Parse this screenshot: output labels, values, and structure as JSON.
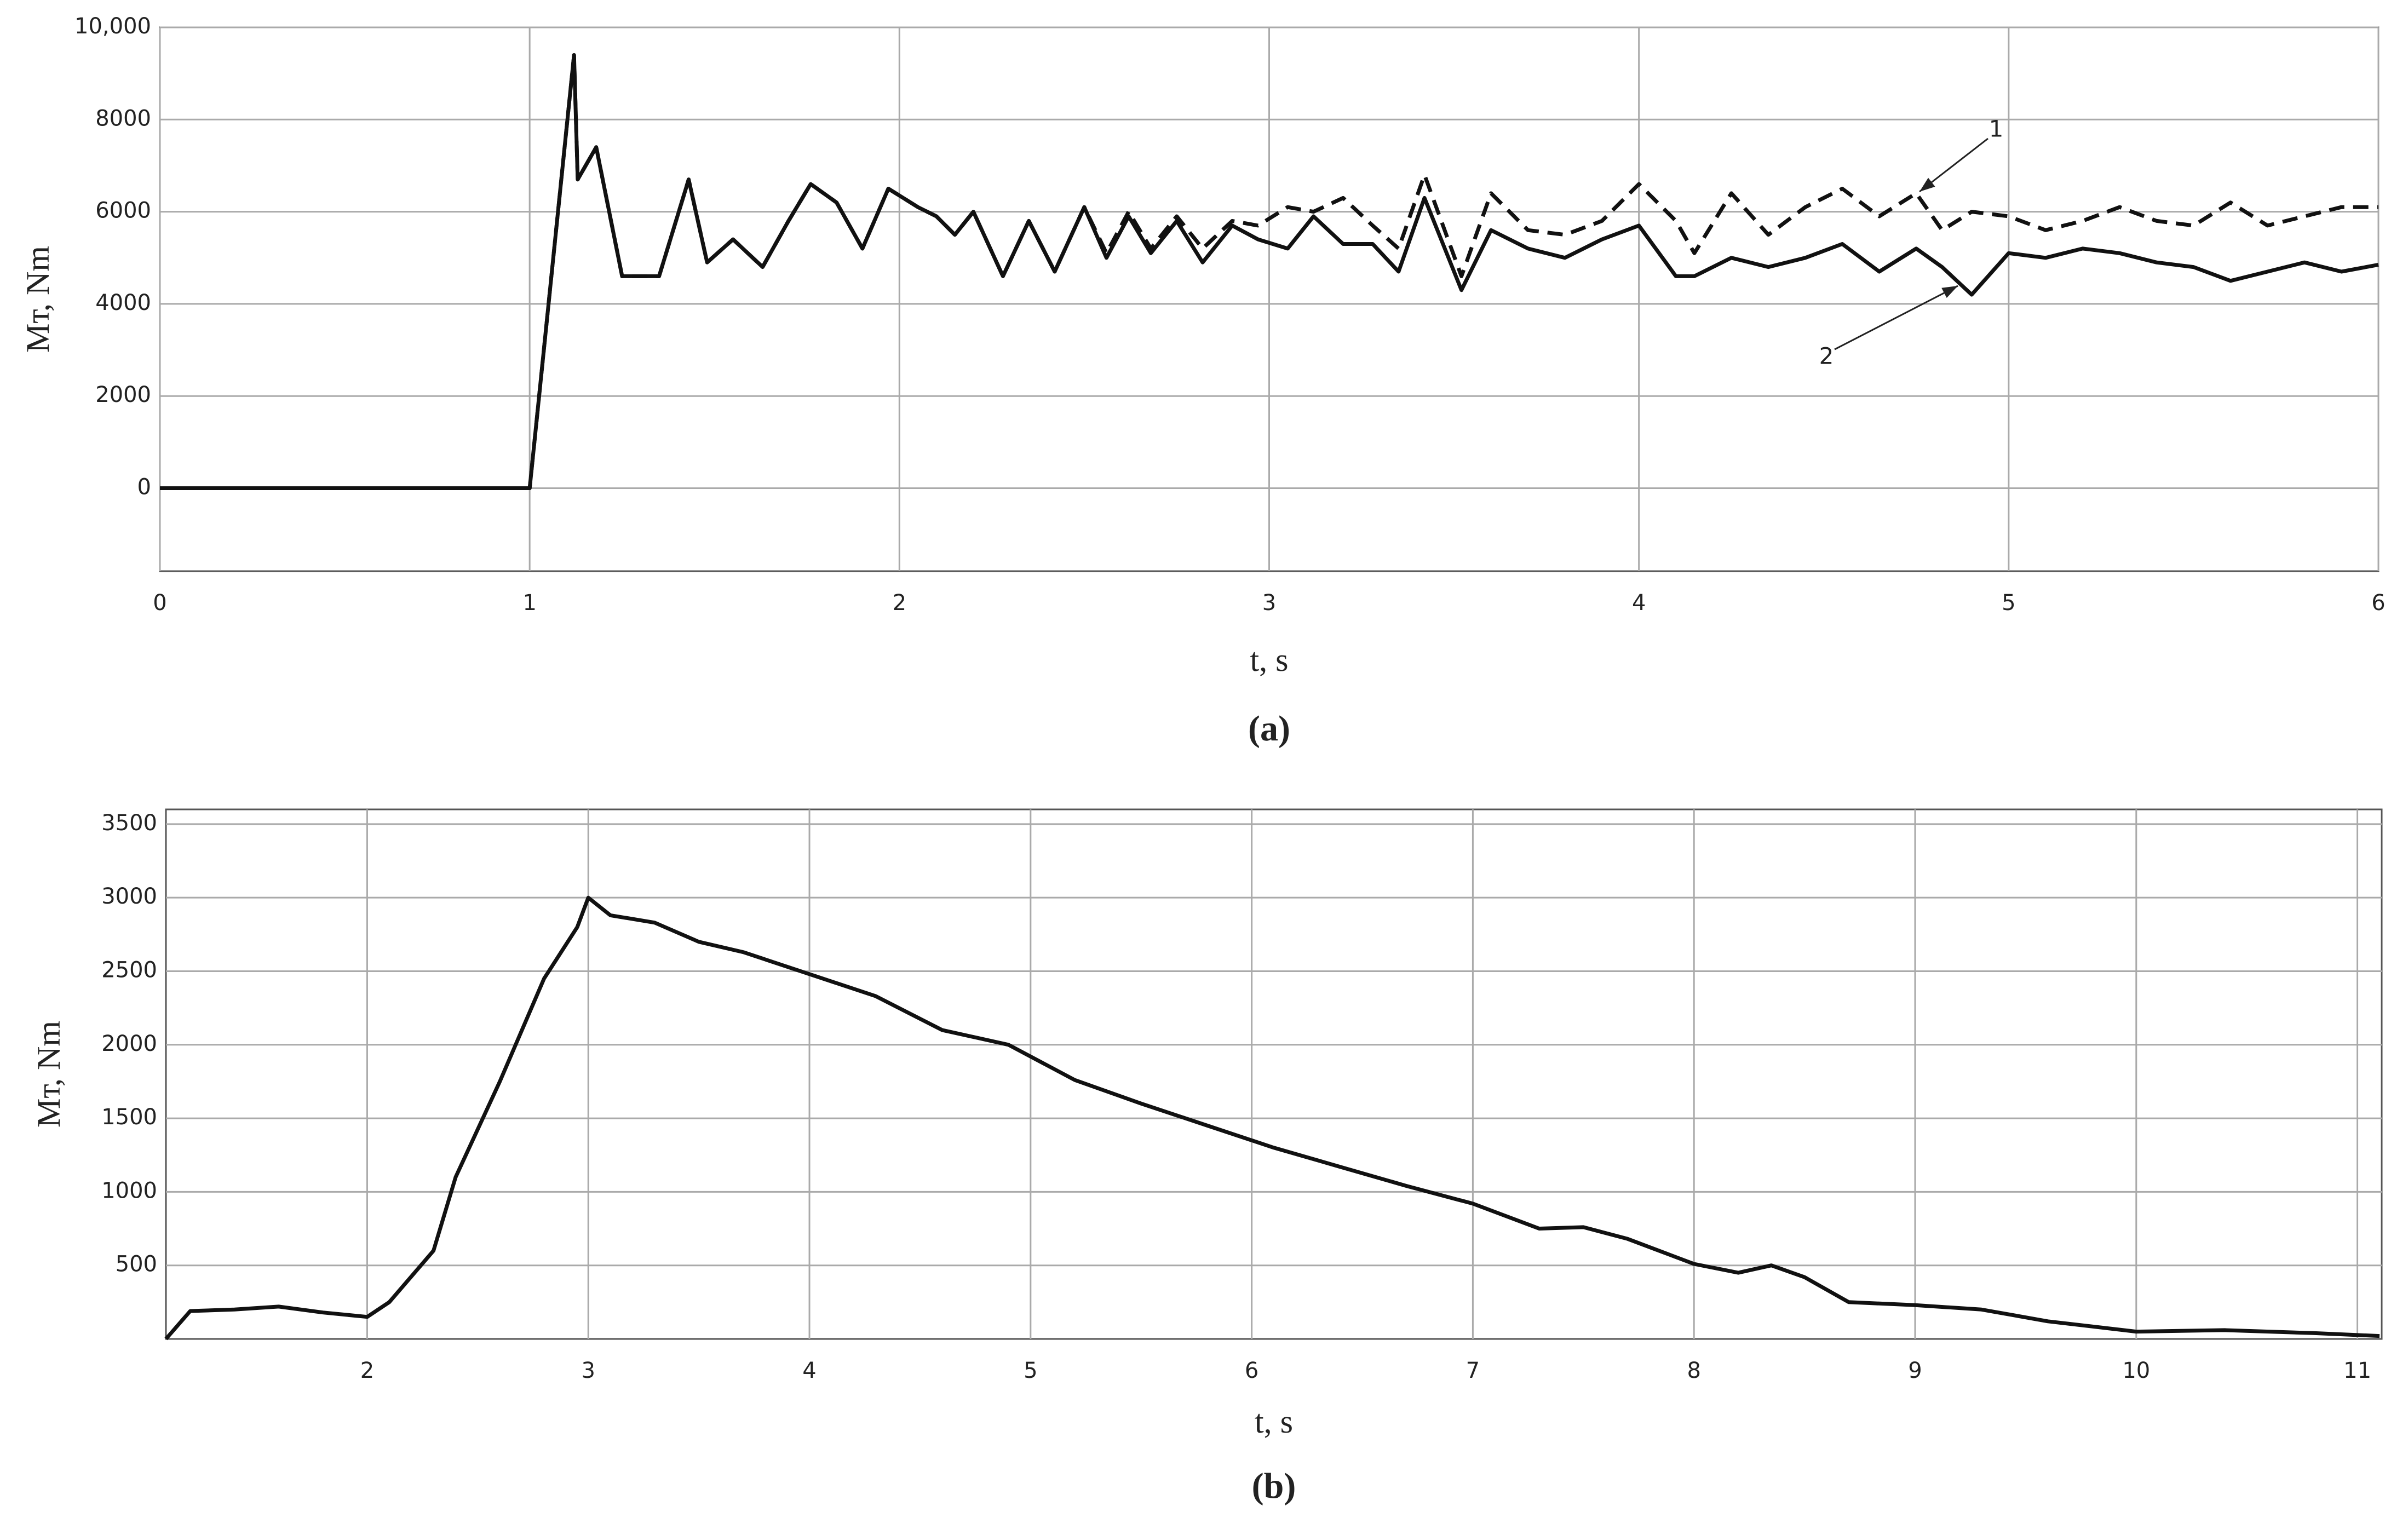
{
  "chart_data": [
    {
      "type": "line",
      "caption": "(a)",
      "x_label": "t, s",
      "y_label": "Mт, Nm",
      "xlim": [
        0,
        6
      ],
      "xticks": [
        0,
        1,
        2,
        3,
        4,
        5,
        6
      ],
      "ylim": [
        -1800,
        10000
      ],
      "yticks": [
        0,
        2000,
        4000,
        6000,
        8000,
        {
          "value": 10000,
          "label": "10,000"
        }
      ],
      "grid": true,
      "x": [
        0,
        1.0,
        1.12,
        1.13,
        1.18,
        1.25,
        1.3,
        1.35,
        1.43,
        1.48,
        1.55,
        1.63,
        1.7,
        1.76,
        1.83,
        1.9,
        1.97,
        2.05,
        2.1,
        2.15,
        2.2,
        2.28,
        2.35,
        2.42,
        2.5,
        2.56,
        2.62,
        2.68,
        2.75,
        2.82,
        2.9,
        2.97,
        3.05,
        3.12,
        3.2,
        3.28,
        3.35,
        3.42,
        3.52,
        3.6,
        3.7,
        3.8,
        3.9,
        4.0,
        4.1,
        4.15,
        4.25,
        4.35,
        4.45,
        4.55,
        4.65,
        4.75,
        4.82,
        4.9,
        5.0,
        5.1,
        5.2,
        5.3,
        5.4,
        5.5,
        5.6,
        5.7,
        5.8,
        5.9,
        6.0
      ],
      "series": [
        {
          "name": "1",
          "color": "#111111",
          "style": "dashed",
          "values": [
            0,
            0,
            9400,
            6700,
            7400,
            4600,
            4600,
            4600,
            6700,
            4900,
            5400,
            4800,
            5800,
            6600,
            6200,
            5200,
            6500,
            6100,
            5900,
            5500,
            6000,
            4600,
            5800,
            4700,
            6100,
            5100,
            6000,
            5200,
            5900,
            5200,
            5800,
            5700,
            6100,
            6000,
            6300,
            5700,
            5200,
            6800,
            4600,
            6400,
            5600,
            5500,
            5800,
            6600,
            5800,
            5100,
            6400,
            5500,
            6100,
            6500,
            5900,
            6400,
            5600,
            6000,
            5900,
            5600,
            5800,
            6100,
            5800,
            5700,
            6200,
            5700,
            5900,
            6100,
            6100
          ]
        },
        {
          "name": "2",
          "color": "#111111",
          "style": "solid",
          "values": [
            0,
            0,
            9400,
            6700,
            7400,
            4600,
            4600,
            4600,
            6700,
            4900,
            5400,
            4800,
            5800,
            6600,
            6200,
            5200,
            6500,
            6100,
            5900,
            5500,
            6000,
            4600,
            5800,
            4700,
            6100,
            5000,
            5900,
            5100,
            5800,
            4900,
            5700,
            5400,
            5200,
            5900,
            5300,
            5300,
            4700,
            6300,
            4300,
            5600,
            5200,
            5000,
            5400,
            5700,
            4600,
            4600,
            5000,
            4800,
            5000,
            5300,
            4700,
            5200,
            4800,
            4200,
            5100,
            5000,
            5200,
            5100,
            4900,
            4800,
            4500,
            4700,
            4900,
            4700,
            4850
          ]
        }
      ]
    },
    {
      "type": "line",
      "caption": "(b)",
      "x_label": "t, s",
      "y_label": "Mт, Nm",
      "xlim": [
        1.09,
        11.11
      ],
      "xticks": [
        2,
        3,
        4,
        5,
        6,
        7,
        8,
        9,
        10,
        11
      ],
      "ylim": [
        0,
        3600
      ],
      "yticks": [
        500,
        1000,
        1500,
        2000,
        2500,
        3000,
        3500
      ],
      "grid": true,
      "x": [
        1.09,
        1.2,
        1.4,
        1.6,
        1.8,
        2.0,
        2.1,
        2.3,
        2.4,
        2.6,
        2.8,
        2.95,
        3.0,
        3.1,
        3.3,
        3.5,
        3.7,
        4.0,
        4.3,
        4.6,
        4.9,
        5.2,
        5.5,
        5.8,
        6.1,
        6.4,
        6.7,
        7.0,
        7.3,
        7.5,
        7.7,
        8.0,
        8.2,
        8.35,
        8.5,
        8.7,
        9.0,
        9.3,
        9.6,
        10.0,
        10.4,
        10.8,
        11.1
      ],
      "color": "#111111",
      "values": [
        0,
        190,
        200,
        220,
        180,
        150,
        250,
        600,
        1100,
        1750,
        2450,
        2800,
        3000,
        2880,
        2830,
        2700,
        2630,
        2480,
        2330,
        2100,
        2000,
        1760,
        1600,
        1450,
        1300,
        1170,
        1040,
        920,
        750,
        760,
        680,
        510,
        450,
        500,
        420,
        250,
        230,
        200,
        120,
        50,
        60,
        40,
        20
      ]
    }
  ]
}
